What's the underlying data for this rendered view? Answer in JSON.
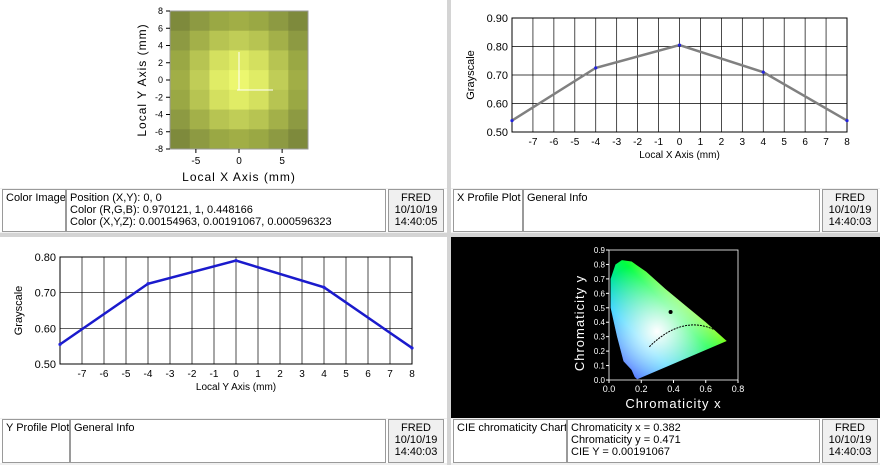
{
  "color_image": {
    "x_axis_label": "Local X Axis (mm)",
    "y_axis_label": "Local Y Axis (mm)",
    "x_ticks": [
      "-5",
      "0",
      "5"
    ],
    "y_ticks": [
      "8",
      "6",
      "4",
      "2",
      "0",
      "-2",
      "-4",
      "-6",
      "-8"
    ],
    "grid_colors": [
      [
        "#7e8a3c",
        "#8d9a42",
        "#9aa844",
        "#a1ae46",
        "#9aa844",
        "#8d9a42",
        "#7e8a3c"
      ],
      [
        "#8d9a42",
        "#a3b049",
        "#b7c452",
        "#c0cd57",
        "#b7c452",
        "#a3b049",
        "#8d9a42"
      ],
      [
        "#9aa844",
        "#b7c452",
        "#d4e05f",
        "#e0ec66",
        "#d4e05f",
        "#b7c452",
        "#9aa844"
      ],
      [
        "#a1ae46",
        "#c0cd57",
        "#e0ec66",
        "#ecf76f",
        "#e0ec66",
        "#c0cd57",
        "#a1ae46"
      ],
      [
        "#9aa844",
        "#b7c452",
        "#d4e05f",
        "#e0ec66",
        "#d4e05f",
        "#b7c452",
        "#9aa844"
      ],
      [
        "#8d9a42",
        "#a3b049",
        "#b7c452",
        "#c0cd57",
        "#b7c452",
        "#a3b049",
        "#8d9a42"
      ],
      [
        "#7e8a3c",
        "#8d9a42",
        "#9aa844",
        "#a1ae46",
        "#9aa844",
        "#8d9a42",
        "#7e8a3c"
      ]
    ]
  },
  "info_color": {
    "title": "Color Image",
    "lines": [
      "Position (X,Y): 0, 0",
      "Color  (R,G,B): 0.970121, 1, 0.448166",
      "Color  (X,Y,Z): 0.00154963, 0.00191067, 0.000596323"
    ],
    "stamp": [
      "FRED",
      "10/10/19",
      "14:40:05"
    ]
  },
  "info_xprofile": {
    "title": "X Profile Plot",
    "general": "General Info",
    "stamp": [
      "FRED",
      "10/10/19",
      "14:40:03"
    ]
  },
  "info_yprofile": {
    "title": "Y Profile Plot",
    "general": "General Info",
    "stamp": [
      "FRED",
      "10/10/19",
      "14:40:03"
    ]
  },
  "info_cie": {
    "title": "CIE chromaticity Chart",
    "lines": [
      "Chromaticity x = 0.382",
      "Chromaticity y = 0.471",
      "CIE Y = 0.00191067"
    ],
    "stamp": [
      "FRED",
      "10/10/19",
      "14:40:03"
    ]
  },
  "chart_data": [
    {
      "type": "line",
      "ylabel": "Grayscale",
      "xlabel": "Local X Axis (mm)",
      "xlim": [
        -8,
        8
      ],
      "ylim": [
        0.5,
        0.9
      ],
      "x_ticks": [
        -7,
        -6,
        -5,
        -4,
        -3,
        -2,
        -1,
        0,
        1,
        2,
        3,
        4,
        5,
        6,
        7,
        8
      ],
      "y_ticks": [
        "0.50",
        "0.60",
        "0.70",
        "0.80",
        "0.90"
      ],
      "series": [
        {
          "x": [
            -8,
            -4,
            0,
            4,
            8
          ],
          "values": [
            0.54,
            0.725,
            0.805,
            0.71,
            0.54
          ],
          "color": "#808080"
        }
      ],
      "grid": true
    },
    {
      "type": "line",
      "ylabel": "Grayscale",
      "xlabel": "Local Y Axis (mm)",
      "xlim": [
        -8,
        8
      ],
      "ylim": [
        0.5,
        0.8
      ],
      "x_ticks": [
        -7,
        -6,
        -5,
        -4,
        -3,
        -2,
        -1,
        0,
        1,
        2,
        3,
        4,
        5,
        6,
        7,
        8
      ],
      "y_ticks": [
        "0.50",
        "0.60",
        "0.70",
        "0.80"
      ],
      "series": [
        {
          "x": [
            -8,
            -4,
            0,
            4,
            8
          ],
          "values": [
            0.555,
            0.725,
            0.79,
            0.715,
            0.545
          ],
          "color": "#1a1acc"
        }
      ],
      "grid": true
    },
    {
      "type": "scatter",
      "xlabel": "Chromaticity x",
      "ylabel": "Chromaticity y",
      "xlim": [
        0,
        0.8
      ],
      "ylim": [
        0,
        0.9
      ],
      "x_ticks": [
        "0.0",
        "0.2",
        "0.4",
        "0.6",
        "0.8"
      ],
      "y_ticks": [
        "0.0",
        "0.1",
        "0.2",
        "0.3",
        "0.4",
        "0.5",
        "0.6",
        "0.7",
        "0.8",
        "0.9"
      ],
      "point": {
        "x": 0.382,
        "y": 0.471
      },
      "grid": false
    }
  ]
}
